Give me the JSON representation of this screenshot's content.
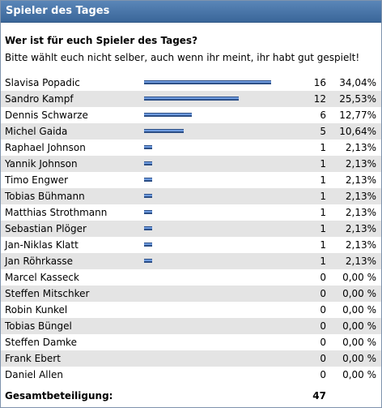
{
  "panel": {
    "title": "Spieler des Tages",
    "question": "Wer ist für euch Spieler des Tages?",
    "hint": "Bitte wählt euch nicht selber, auch wenn ihr meint, ihr habt gut gespielt!"
  },
  "colors": {
    "title_bg": "#4a76a8",
    "bar": "#2d4f86",
    "row_alt": "#e4e4e4"
  },
  "results": [
    {
      "name": "Slavisa Popadic",
      "votes": "16",
      "percent": "34,04%",
      "share": 0.3404
    },
    {
      "name": "Sandro Kampf",
      "votes": "12",
      "percent": "25,53%",
      "share": 0.2553
    },
    {
      "name": "Dennis Schwarze",
      "votes": "6",
      "percent": "12,77%",
      "share": 0.1277
    },
    {
      "name": "Michel Gaida",
      "votes": "5",
      "percent": "10,64%",
      "share": 0.1064
    },
    {
      "name": "Raphael Johnson",
      "votes": "1",
      "percent": "2,13%",
      "share": 0.0213
    },
    {
      "name": "Yannik Johnson",
      "votes": "1",
      "percent": "2,13%",
      "share": 0.0213
    },
    {
      "name": "Timo Engwer",
      "votes": "1",
      "percent": "2,13%",
      "share": 0.0213
    },
    {
      "name": "Tobias Bühmann",
      "votes": "1",
      "percent": "2,13%",
      "share": 0.0213
    },
    {
      "name": "Matthias Strothmann",
      "votes": "1",
      "percent": "2,13%",
      "share": 0.0213
    },
    {
      "name": "Sebastian Plöger",
      "votes": "1",
      "percent": "2,13%",
      "share": 0.0213
    },
    {
      "name": "Jan-Niklas Klatt",
      "votes": "1",
      "percent": "2,13%",
      "share": 0.0213
    },
    {
      "name": "Jan Röhrkasse",
      "votes": "1",
      "percent": "2,13%",
      "share": 0.0213
    },
    {
      "name": "Marcel Kasseck",
      "votes": "0",
      "percent": "0,00 %",
      "share": 0
    },
    {
      "name": "Steffen Mitschker",
      "votes": "0",
      "percent": "0,00 %",
      "share": 0
    },
    {
      "name": "Robin Kunkel",
      "votes": "0",
      "percent": "0,00 %",
      "share": 0
    },
    {
      "name": "Tobias Büngel",
      "votes": "0",
      "percent": "0,00 %",
      "share": 0
    },
    {
      "name": "Steffen Damke",
      "votes": "0",
      "percent": "0,00 %",
      "share": 0
    },
    {
      "name": "Frank Ebert",
      "votes": "0",
      "percent": "0,00 %",
      "share": 0
    },
    {
      "name": "Daniel Allen",
      "votes": "0",
      "percent": "0,00 %",
      "share": 0
    }
  ],
  "total": {
    "label": "Gesamtbeteiligung:",
    "value": "47"
  }
}
